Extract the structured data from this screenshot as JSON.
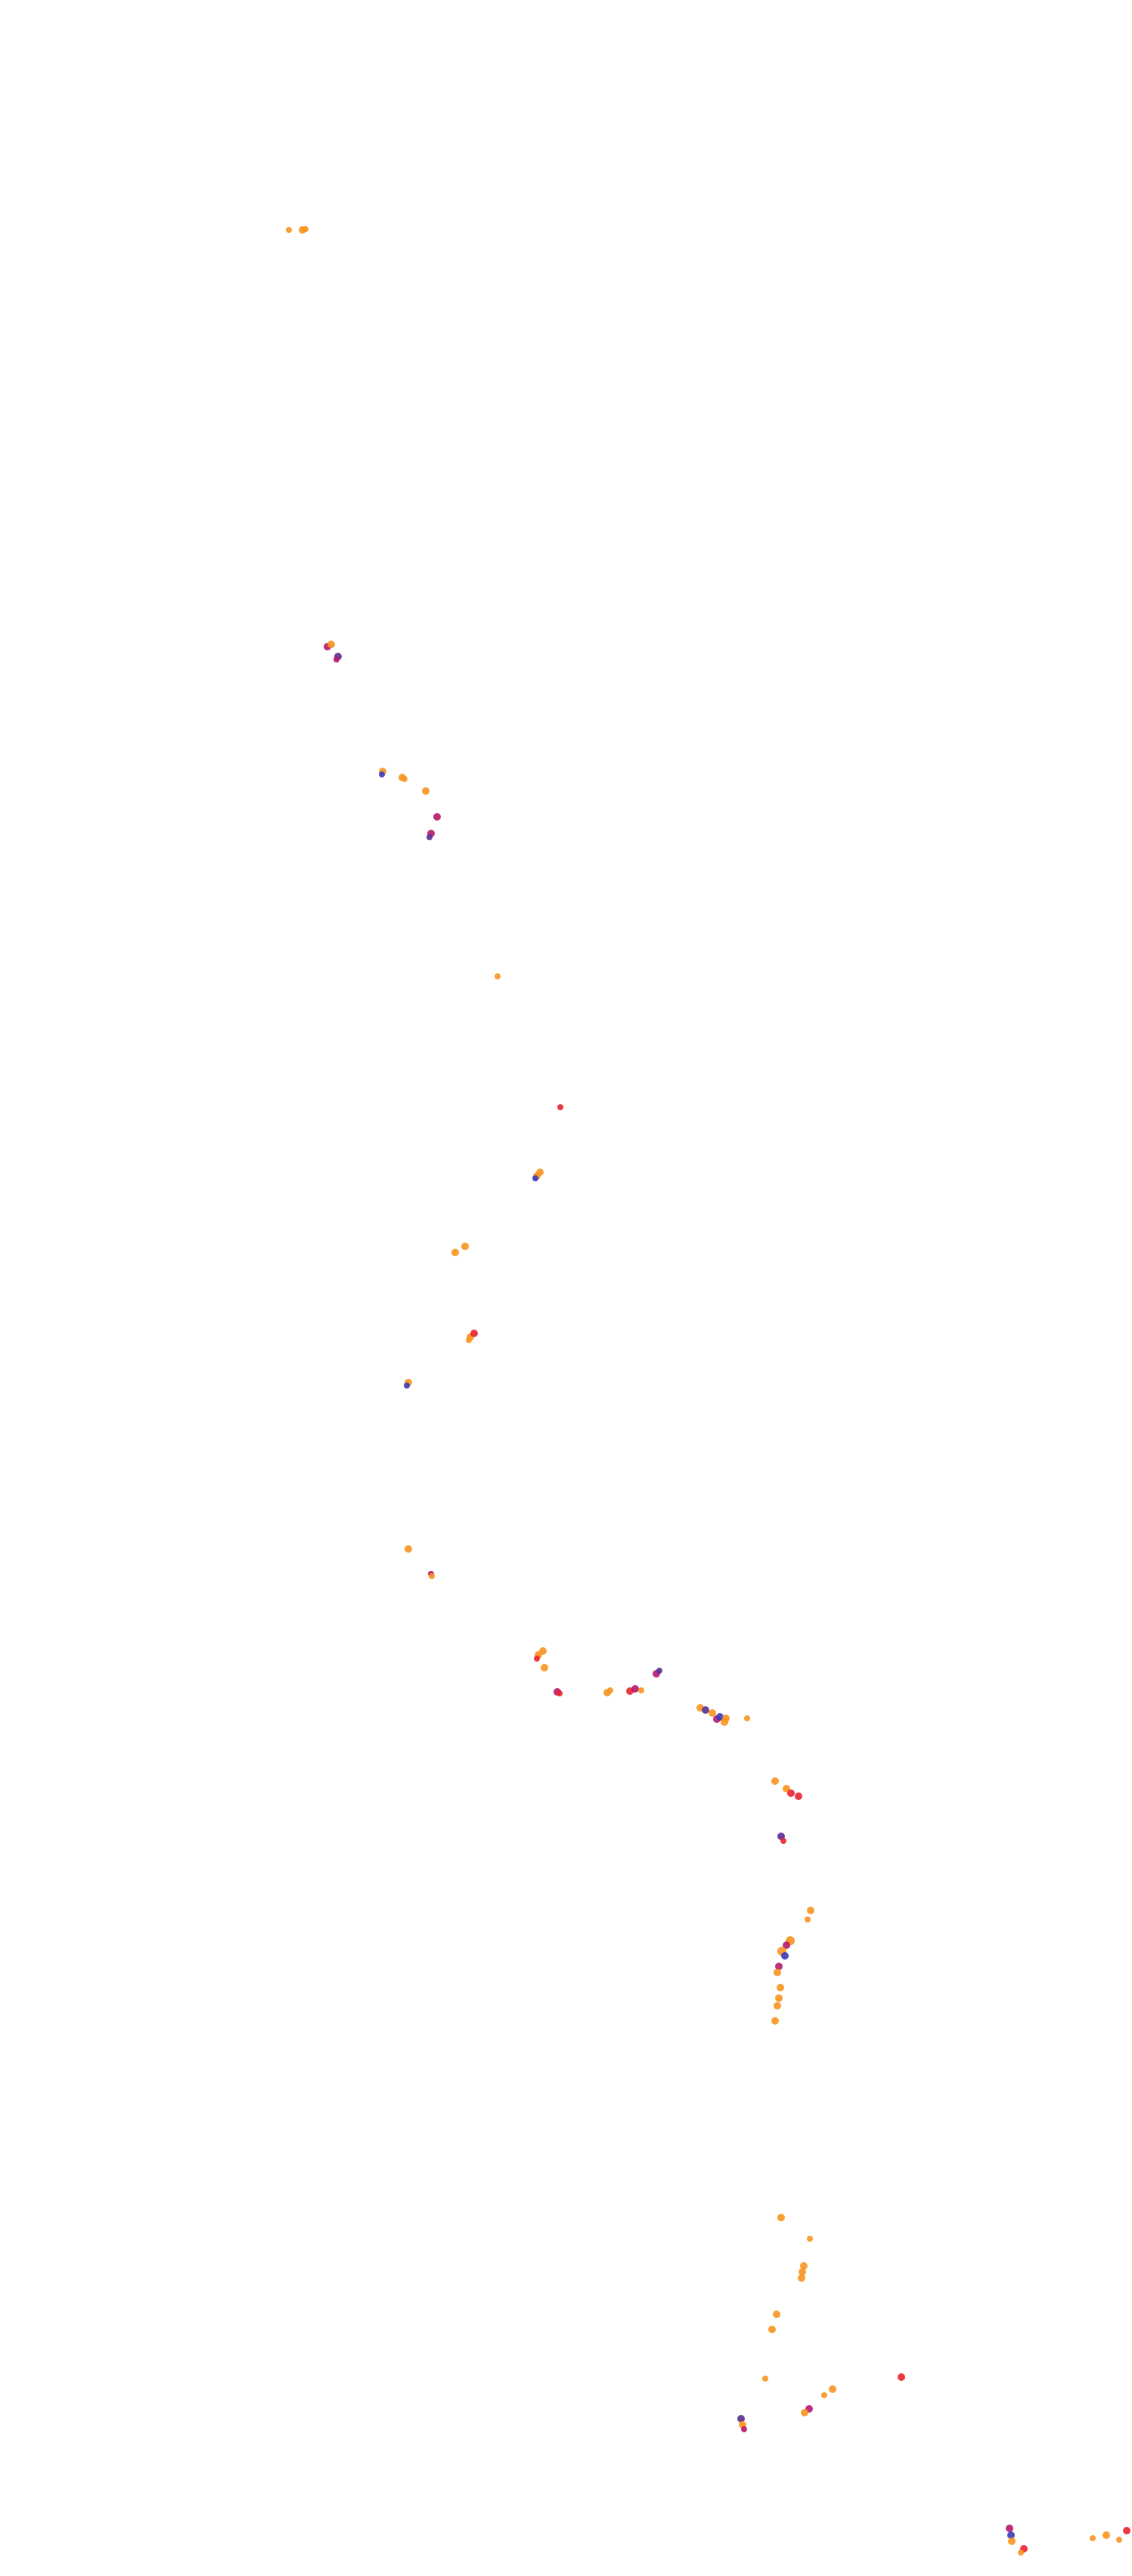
{
  "map": {
    "background": "#ffffff",
    "palette": {
      "orange": "#f7931e",
      "red": "#e8242e",
      "magenta": "#b5186c",
      "purple": "#5a2d91",
      "blue": "#3b3bb8"
    },
    "clusters_note_visible_text": ""
  }
}
